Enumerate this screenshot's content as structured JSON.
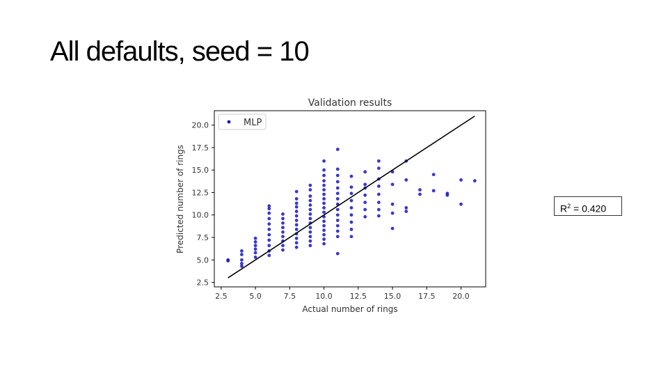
{
  "slide": {
    "title": "All defaults, seed = 10",
    "r2_label": "R",
    "r2_sup": "2",
    "r2_value": " = 0.420"
  },
  "colors": {
    "points": "#1515c8",
    "line": "#000000"
  },
  "chart_data": {
    "type": "scatter",
    "title": "Validation results",
    "xlabel": "Actual number of rings",
    "ylabel": "Predicted number of rings",
    "xlim": [
      2,
      21.8
    ],
    "ylim": [
      2,
      21.6
    ],
    "xticks": [
      2.5,
      5.0,
      7.5,
      10.0,
      12.5,
      15.0,
      17.5,
      20.0
    ],
    "yticks": [
      2.5,
      5.0,
      7.5,
      10.0,
      12.5,
      15.0,
      17.5,
      20.0
    ],
    "xtick_labels": [
      "2.5",
      "5.0",
      "7.5",
      "10.0",
      "12.5",
      "15.0",
      "17.5",
      "20.0"
    ],
    "ytick_labels": [
      "2.5",
      "5.0",
      "7.5",
      "10.0",
      "12.5",
      "15.0",
      "17.5",
      "20.0"
    ],
    "grid": false,
    "legend": {
      "position": "top-left",
      "entries": [
        "MLP"
      ]
    },
    "reference_line": {
      "x": [
        3,
        21
      ],
      "y": [
        3,
        21
      ]
    },
    "series": [
      {
        "name": "MLP",
        "columns": [
          {
            "x": 3,
            "y": [
              4.9,
              5.0
            ]
          },
          {
            "x": 4,
            "y": [
              4.3,
              4.6,
              5.0,
              5.6,
              6.0
            ]
          },
          {
            "x": 5,
            "y": [
              5.3,
              5.8,
              6.2,
              6.6,
              7.0,
              7.4
            ]
          },
          {
            "x": 6,
            "y": [
              5.5,
              6.0,
              6.6,
              7.2,
              7.8,
              8.4,
              9.0,
              9.6,
              10.2,
              10.7,
              11.0
            ]
          },
          {
            "x": 7,
            "y": [
              6.1,
              6.6,
              7.1,
              7.6,
              8.1,
              8.6,
              9.1,
              9.6,
              10.1
            ]
          },
          {
            "x": 8,
            "y": [
              6.4,
              6.9,
              7.4,
              7.9,
              8.4,
              8.9,
              9.4,
              9.9,
              10.4,
              10.9,
              11.3,
              11.8,
              12.6
            ]
          },
          {
            "x": 9,
            "y": [
              6.6,
              7.1,
              7.6,
              8.1,
              8.6,
              9.1,
              9.6,
              10.1,
              10.6,
              11.1,
              11.6,
              12.1,
              12.8,
              13.3
            ]
          },
          {
            "x": 10,
            "y": [
              6.8,
              7.3,
              7.8,
              8.3,
              8.8,
              9.3,
              9.8,
              10.3,
              10.8,
              11.3,
              11.8,
              12.3,
              12.8,
              13.3,
              13.8,
              14.4,
              15.0,
              16.0
            ]
          },
          {
            "x": 11,
            "y": [
              5.7,
              7.6,
              8.2,
              8.8,
              9.4,
              10.0,
              10.6,
              11.2,
              11.8,
              12.4,
              13.0,
              13.7,
              14.4,
              15.1,
              17.3
            ]
          },
          {
            "x": 12,
            "y": [
              7.6,
              8.4,
              9.2,
              10.0,
              10.8,
              11.6,
              12.4,
              13.1,
              14.3
            ]
          },
          {
            "x": 13,
            "y": [
              9.8,
              10.6,
              11.4,
              12.2,
              13.0,
              13.4,
              14.8
            ]
          },
          {
            "x": 14,
            "y": [
              9.9,
              10.6,
              11.4,
              12.3,
              13.2,
              14.0,
              15.2,
              16.0
            ]
          },
          {
            "x": 15,
            "y": [
              8.5,
              10.2,
              11.2,
              13.4,
              14.8
            ]
          },
          {
            "x": 16,
            "y": [
              10.4,
              10.8,
              13.9,
              16.0
            ]
          },
          {
            "x": 17,
            "y": [
              12.3,
              12.8
            ]
          },
          {
            "x": 18,
            "y": [
              12.7,
              14.5
            ]
          },
          {
            "x": 19,
            "y": [
              12.2,
              12.4
            ]
          },
          {
            "x": 20,
            "y": [
              11.2,
              13.9
            ]
          },
          {
            "x": 21,
            "y": [
              13.8
            ]
          }
        ]
      }
    ]
  }
}
